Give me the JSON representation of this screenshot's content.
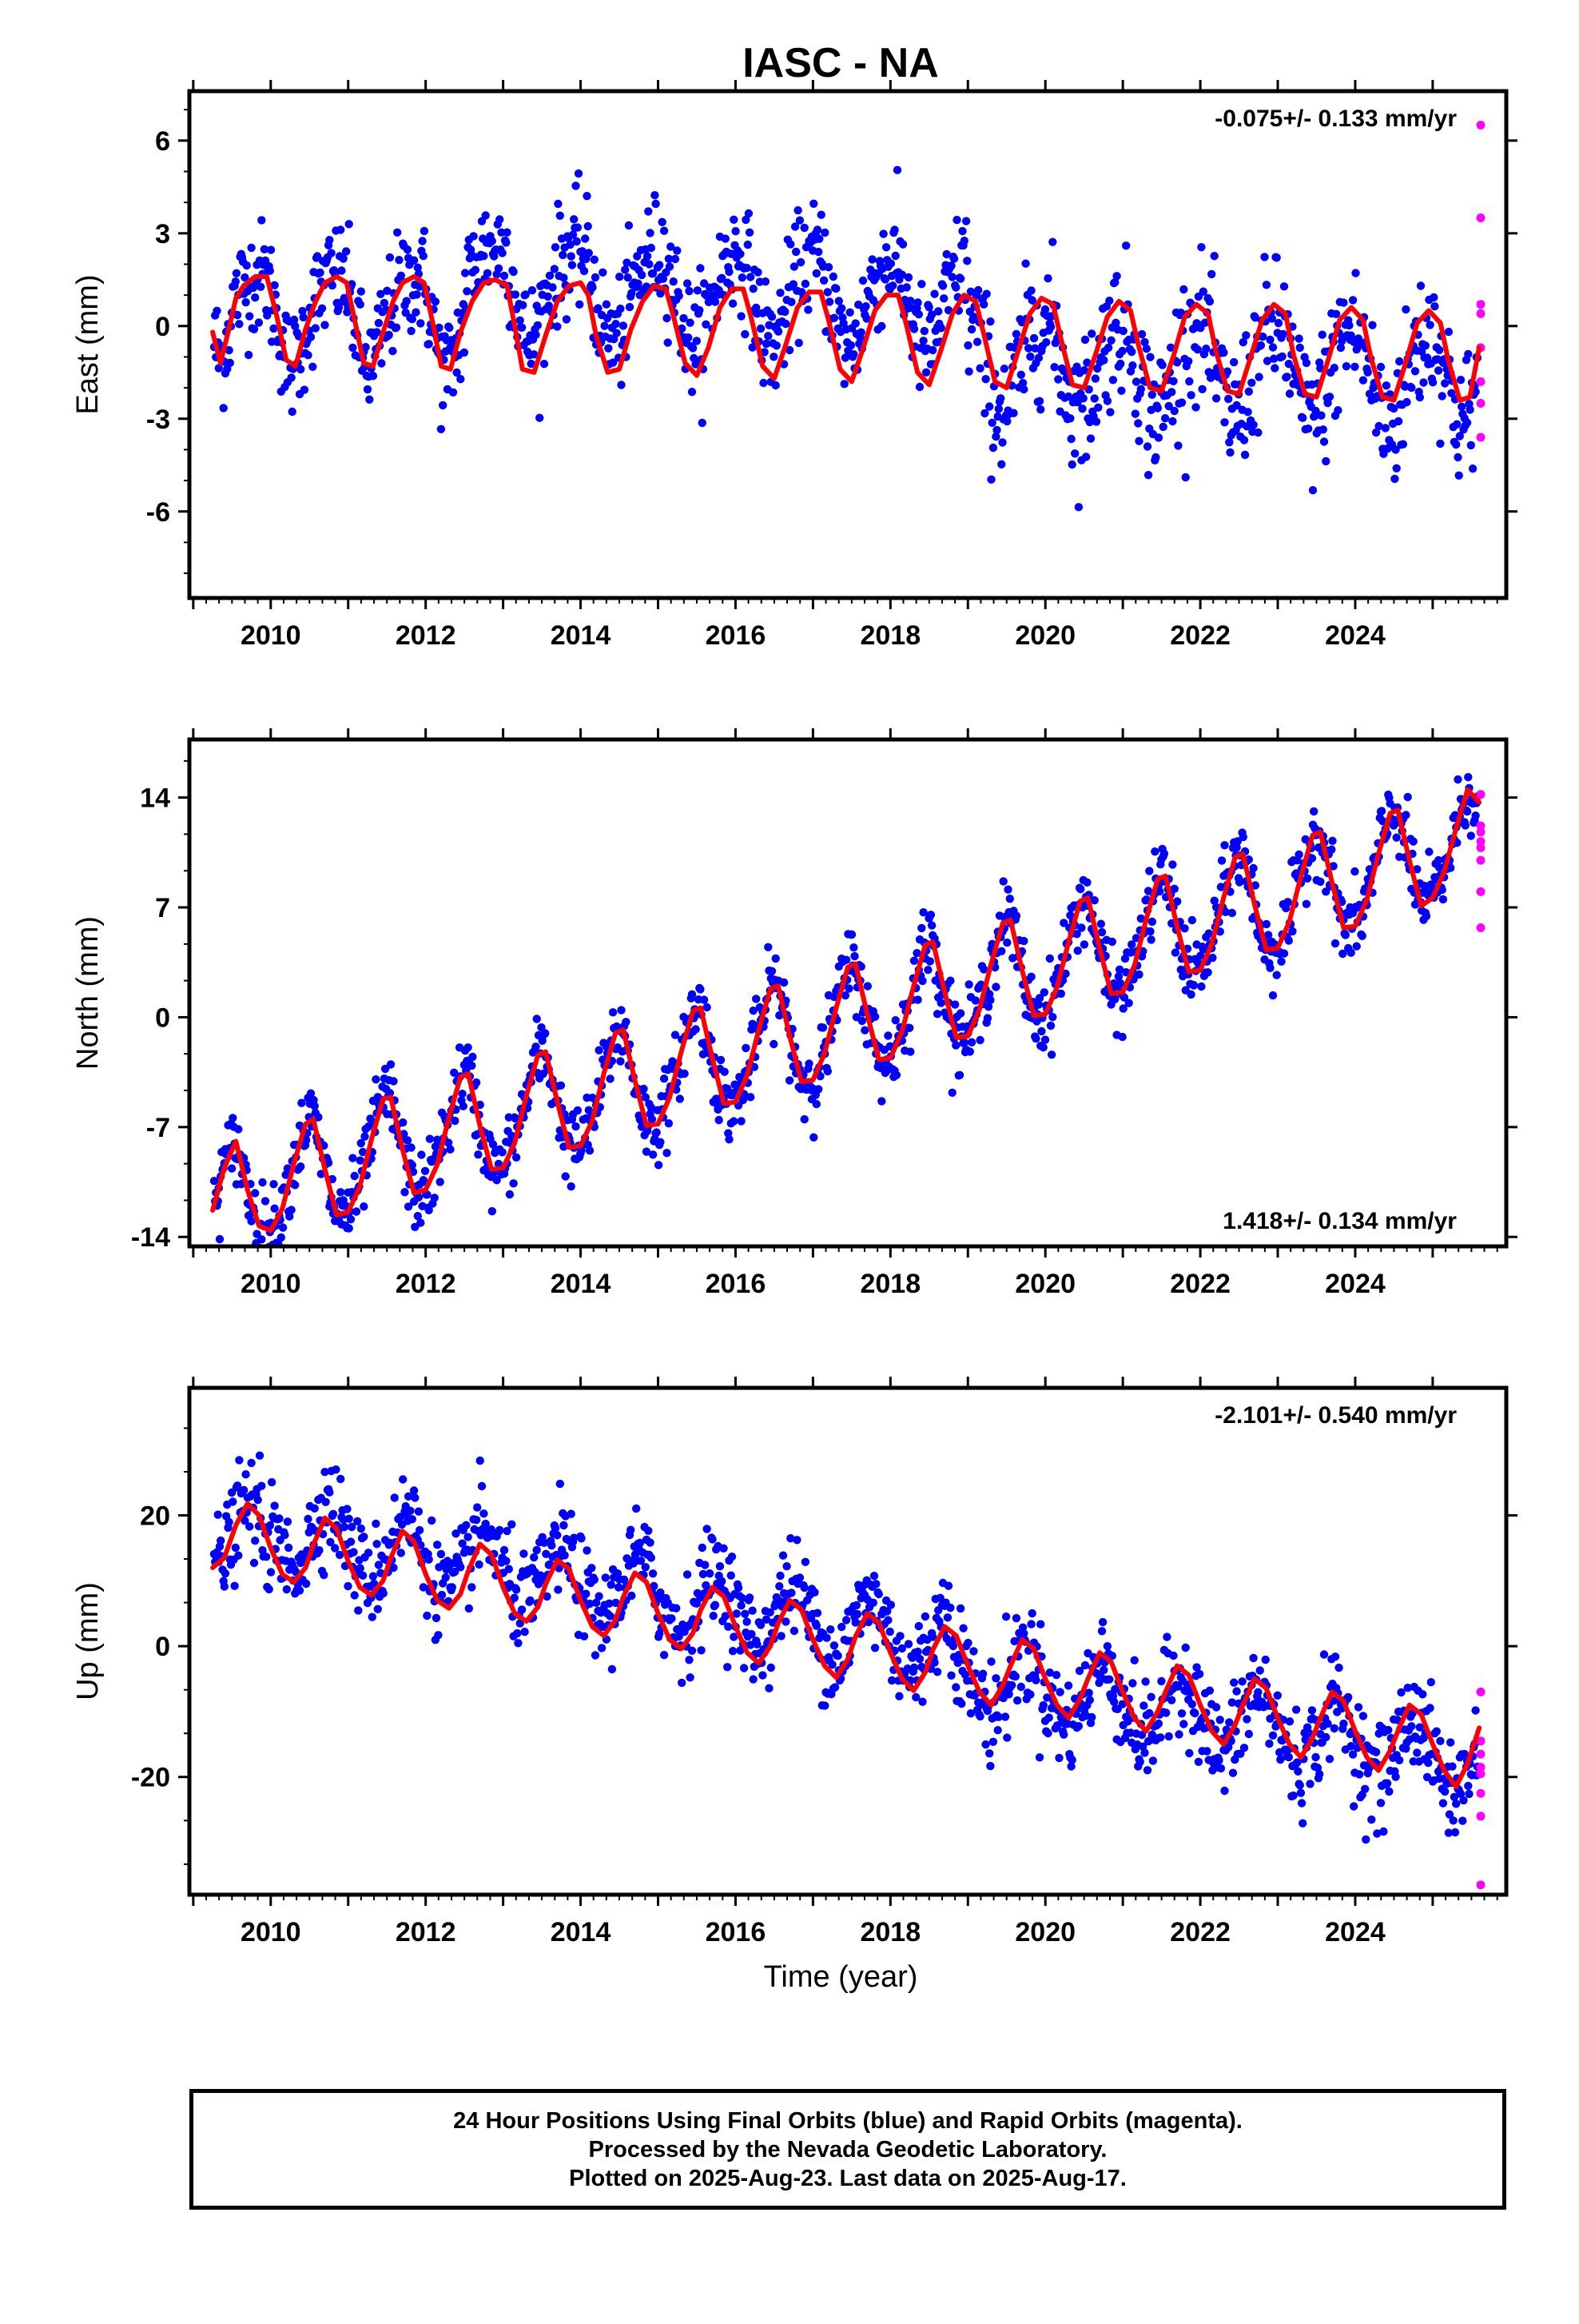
{
  "title": "IASC - NA",
  "x_label": "Time (year)",
  "footer": {
    "line1": "24 Hour Positions Using Final Orbits (blue) and Rapid Orbits (magenta).",
    "line2": "Processed by the Nevada Geodetic Laboratory.",
    "line3": "Plotted on 2025-Aug-23. Last data on 2025-Aug-17."
  },
  "colors": {
    "final_orbits": "#0000ff",
    "rapid_orbits": "#ff00ff",
    "model": "#ff0000",
    "axes": "#000000"
  },
  "chart_data": [
    {
      "type": "scatter",
      "ylabel": "East (mm)",
      "rate_text": "-0.075+/- 0.133 mm/yr",
      "rate_position": "top-right",
      "xlim": [
        2008.95,
        2025.95
      ],
      "ylim": [
        -8.8,
        7.6
      ],
      "yticks": [
        -6,
        -3,
        0,
        3,
        6
      ],
      "ytick_labels": [
        "-6",
        "-3",
        "0",
        "3",
        "6"
      ],
      "xticks": [
        2010,
        2012,
        2014,
        2016,
        2018,
        2020,
        2022,
        2024
      ],
      "xtick_labels": [
        "2010",
        "2012",
        "2014",
        "2016",
        "2018",
        "2020",
        "2022",
        "2024"
      ],
      "grid": false,
      "model": {
        "x": [
          2009.25,
          2009.35,
          2009.45,
          2009.55,
          2009.65,
          2009.8,
          2009.95,
          2010.08,
          2010.2,
          2010.32,
          2010.45,
          2010.58,
          2010.7,
          2010.85,
          2010.98,
          2011.1,
          2011.2,
          2011.32,
          2011.45,
          2011.58,
          2011.7,
          2011.85,
          2011.98,
          2012.1,
          2012.2,
          2012.32,
          2012.45,
          2012.6,
          2012.75,
          2012.9,
          2013.05,
          2013.15,
          2013.25,
          2013.4,
          2013.55,
          2013.7,
          2013.85,
          2014.0,
          2014.1,
          2014.2,
          2014.35,
          2014.5,
          2014.65,
          2014.8,
          2014.95,
          2015.1,
          2015.2,
          2015.35,
          2015.5,
          2015.65,
          2015.8,
          2015.95,
          2016.1,
          2016.2,
          2016.35,
          2016.5,
          2016.65,
          2016.8,
          2016.95,
          2017.1,
          2017.2,
          2017.35,
          2017.5,
          2017.65,
          2017.8,
          2017.95,
          2018.1,
          2018.2,
          2018.35,
          2018.5,
          2018.65,
          2018.8,
          2018.95,
          2019.1,
          2019.2,
          2019.35,
          2019.5,
          2019.65,
          2019.8,
          2019.95,
          2020.1,
          2020.2,
          2020.35,
          2020.5,
          2020.65,
          2020.8,
          2020.95,
          2021.1,
          2021.2,
          2021.35,
          2021.5,
          2021.65,
          2021.8,
          2021.95,
          2022.1,
          2022.2,
          2022.35,
          2022.5,
          2022.65,
          2022.8,
          2022.95,
          2023.1,
          2023.2,
          2023.35,
          2023.5,
          2023.65,
          2023.8,
          2023.95,
          2024.1,
          2024.2,
          2024.35,
          2024.5,
          2024.65,
          2024.8,
          2024.95,
          2025.1,
          2025.2,
          2025.35,
          2025.48,
          2025.6
        ],
        "y": [
          -0.2,
          -1.2,
          -0.2,
          0.9,
          1.3,
          1.6,
          1.6,
          0.3,
          -1.1,
          -1.3,
          -0.1,
          0.8,
          1.4,
          1.6,
          1.4,
          0.0,
          -1.2,
          -1.3,
          -0.2,
          0.8,
          1.4,
          1.6,
          1.4,
          0.0,
          -1.3,
          -1.4,
          -0.2,
          0.8,
          1.4,
          1.5,
          1.3,
          0.0,
          -1.4,
          -1.5,
          -0.3,
          0.8,
          1.3,
          1.4,
          1.0,
          -0.3,
          -1.5,
          -1.4,
          -0.1,
          0.8,
          1.3,
          1.2,
          0.3,
          -1.2,
          -1.6,
          -0.7,
          0.6,
          1.2,
          1.2,
          0.3,
          -1.3,
          -1.7,
          -0.6,
          0.6,
          1.1,
          1.1,
          0.2,
          -1.4,
          -1.8,
          -0.7,
          0.5,
          1.0,
          1.0,
          0.1,
          -1.5,
          -1.9,
          -0.8,
          0.4,
          1.0,
          0.8,
          -0.2,
          -1.8,
          -2.0,
          -0.8,
          0.4,
          0.9,
          0.7,
          -0.4,
          -1.9,
          -2.0,
          -0.9,
          0.3,
          0.8,
          0.5,
          -0.6,
          -2.0,
          -2.1,
          -1.0,
          0.3,
          0.7,
          0.4,
          -0.8,
          -2.1,
          -2.2,
          -1.0,
          0.2,
          0.7,
          0.4,
          -0.9,
          -2.2,
          -2.3,
          -1.1,
          0.2,
          0.6,
          0.2,
          -1.0,
          -2.3,
          -2.4,
          -1.2,
          0.1,
          0.5,
          0.1,
          -1.1,
          -2.4,
          -2.3,
          -0.7
        ]
      },
      "rapid": {
        "x": [
          2025.62,
          2025.62,
          2025.62,
          2025.62,
          2025.62,
          2025.62,
          2025.62,
          2025.62
        ],
        "y": [
          6.5,
          3.5,
          0.7,
          0.4,
          -0.7,
          -1.8,
          -2.5,
          -3.6
        ]
      }
    },
    {
      "type": "scatter",
      "ylabel": "North (mm)",
      "rate_text": "1.418+/- 0.134 mm/yr",
      "rate_position": "bottom-right",
      "xlim": [
        2008.95,
        2025.95
      ],
      "ylim": [
        -14.6,
        17.7
      ],
      "yticks": [
        -14,
        -7,
        0,
        7,
        14
      ],
      "ytick_labels": [
        "-14",
        "-7",
        "0",
        "7",
        "14"
      ],
      "xticks": [
        2010,
        2012,
        2014,
        2016,
        2018,
        2020,
        2022,
        2024
      ],
      "xtick_labels": [
        "2010",
        "2012",
        "2014",
        "2016",
        "2018",
        "2020",
        "2022",
        "2024"
      ],
      "grid": false,
      "model": {
        "x": [
          2009.25,
          2009.4,
          2009.55,
          2009.7,
          2009.85,
          2010.0,
          2010.15,
          2010.3,
          2010.45,
          2010.55,
          2010.7,
          2010.85,
          2011.0,
          2011.15,
          2011.3,
          2011.45,
          2011.55,
          2011.7,
          2011.85,
          2012.0,
          2012.15,
          2012.3,
          2012.45,
          2012.55,
          2012.7,
          2012.85,
          2013.0,
          2013.15,
          2013.3,
          2013.45,
          2013.55,
          2013.7,
          2013.85,
          2014.0,
          2014.15,
          2014.3,
          2014.45,
          2014.55,
          2014.7,
          2014.85,
          2015.0,
          2015.15,
          2015.3,
          2015.45,
          2015.55,
          2015.7,
          2015.85,
          2016.0,
          2016.15,
          2016.3,
          2016.45,
          2016.55,
          2016.7,
          2016.85,
          2017.0,
          2017.15,
          2017.3,
          2017.45,
          2017.55,
          2017.7,
          2017.85,
          2018.0,
          2018.15,
          2018.3,
          2018.45,
          2018.55,
          2018.7,
          2018.85,
          2019.0,
          2019.15,
          2019.3,
          2019.45,
          2019.55,
          2019.7,
          2019.85,
          2020.0,
          2020.15,
          2020.3,
          2020.45,
          2020.55,
          2020.7,
          2020.85,
          2021.0,
          2021.15,
          2021.3,
          2021.45,
          2021.55,
          2021.7,
          2021.85,
          2022.0,
          2022.15,
          2022.3,
          2022.45,
          2022.55,
          2022.7,
          2022.85,
          2023.0,
          2023.15,
          2023.3,
          2023.45,
          2023.55,
          2023.7,
          2023.85,
          2024.0,
          2024.15,
          2024.3,
          2024.45,
          2024.55,
          2024.7,
          2024.85,
          2025.0,
          2025.15,
          2025.3,
          2025.45,
          2025.6
        ],
        "y": [
          -12.3,
          -9.6,
          -7.9,
          -11.0,
          -13.3,
          -13.6,
          -12.2,
          -9.3,
          -6.8,
          -6.5,
          -9.7,
          -12.6,
          -12.4,
          -10.8,
          -7.8,
          -5.2,
          -5.1,
          -8.4,
          -11.2,
          -11.0,
          -9.4,
          -6.4,
          -3.8,
          -3.6,
          -6.9,
          -9.7,
          -9.6,
          -8.0,
          -5.0,
          -2.4,
          -2.2,
          -5.4,
          -8.3,
          -8.2,
          -6.6,
          -3.6,
          -1.0,
          -0.8,
          -4.0,
          -6.9,
          -6.8,
          -5.1,
          -2.2,
          0.4,
          0.6,
          -2.6,
          -5.5,
          -5.4,
          -3.7,
          -0.8,
          1.8,
          2.0,
          -1.2,
          -4.1,
          -4.0,
          -2.3,
          0.6,
          3.2,
          3.4,
          0.2,
          -2.7,
          -2.6,
          -0.9,
          2.0,
          4.6,
          4.8,
          1.6,
          -1.3,
          -1.2,
          0.5,
          3.4,
          6.0,
          6.2,
          3.0,
          0.1,
          0.2,
          1.9,
          4.8,
          7.4,
          7.6,
          4.4,
          1.5,
          1.6,
          3.3,
          6.2,
          8.8,
          9.0,
          5.8,
          2.9,
          3.0,
          4.7,
          7.6,
          10.2,
          10.4,
          7.2,
          4.3,
          4.4,
          6.1,
          9.0,
          11.6,
          11.8,
          8.6,
          5.7,
          5.8,
          7.5,
          10.4,
          13.0,
          13.2,
          10.0,
          7.1,
          7.6,
          9.3,
          12.0,
          14.5,
          13.7
        ]
      },
      "rapid": {
        "x": [
          2025.62,
          2025.62,
          2025.62,
          2025.62,
          2025.62,
          2025.62,
          2025.62,
          2025.62
        ],
        "y": [
          14.2,
          12.2,
          11.8,
          11.2,
          10.8,
          10.0,
          8.0,
          5.7
        ]
      }
    },
    {
      "type": "scatter",
      "ylabel": "Up (mm)",
      "rate_text": "-2.101+/- 0.540 mm/yr",
      "rate_position": "top-right",
      "xlim": [
        2008.95,
        2025.95
      ],
      "ylim": [
        -38.0,
        39.5
      ],
      "yticks": [
        -20,
        0,
        20
      ],
      "ytick_labels": [
        "-20",
        "0",
        "20"
      ],
      "xticks": [
        2010,
        2012,
        2014,
        2016,
        2018,
        2020,
        2022,
        2024
      ],
      "xtick_labels": [
        "2010",
        "2012",
        "2014",
        "2016",
        "2018",
        "2020",
        "2022",
        "2024"
      ],
      "grid": false,
      "model": {
        "x": [
          2009.25,
          2009.4,
          2009.55,
          2009.7,
          2009.85,
          2010.0,
          2010.15,
          2010.3,
          2010.45,
          2010.55,
          2010.7,
          2010.85,
          2011.0,
          2011.15,
          2011.3,
          2011.45,
          2011.55,
          2011.7,
          2011.85,
          2012.0,
          2012.15,
          2012.3,
          2012.45,
          2012.55,
          2012.7,
          2012.85,
          2013.0,
          2013.15,
          2013.3,
          2013.45,
          2013.55,
          2013.7,
          2013.85,
          2014.0,
          2014.15,
          2014.3,
          2014.45,
          2014.55,
          2014.7,
          2014.85,
          2015.0,
          2015.15,
          2015.3,
          2015.45,
          2015.55,
          2015.7,
          2015.85,
          2016.0,
          2016.15,
          2016.3,
          2016.45,
          2016.55,
          2016.7,
          2016.85,
          2017.0,
          2017.15,
          2017.3,
          2017.45,
          2017.55,
          2017.7,
          2017.85,
          2018.0,
          2018.15,
          2018.3,
          2018.45,
          2018.55,
          2018.7,
          2018.85,
          2019.0,
          2019.15,
          2019.3,
          2019.45,
          2019.55,
          2019.7,
          2019.85,
          2020.0,
          2020.15,
          2020.3,
          2020.45,
          2020.55,
          2020.7,
          2020.85,
          2021.0,
          2021.15,
          2021.3,
          2021.45,
          2021.55,
          2021.7,
          2021.85,
          2022.0,
          2022.15,
          2022.3,
          2022.45,
          2022.55,
          2022.7,
          2022.85,
          2023.0,
          2023.15,
          2023.3,
          2023.45,
          2023.55,
          2023.7,
          2023.85,
          2024.0,
          2024.15,
          2024.3,
          2024.45,
          2024.55,
          2024.7,
          2024.85,
          2025.0,
          2025.15,
          2025.3,
          2025.45,
          2025.6
        ],
        "y": [
          12.0,
          13.5,
          18.5,
          21.8,
          20.0,
          15.0,
          11.0,
          9.8,
          12.0,
          15.5,
          19.6,
          18.0,
          13.0,
          9.0,
          7.8,
          10.0,
          13.5,
          17.6,
          16.0,
          11.0,
          7.0,
          5.8,
          8.0,
          11.5,
          15.6,
          14.0,
          9.0,
          5.0,
          3.8,
          6.0,
          9.5,
          13.2,
          11.8,
          7.0,
          3.0,
          1.6,
          4.0,
          7.5,
          11.2,
          9.8,
          5.0,
          1.0,
          -0.4,
          2.0,
          5.5,
          9.0,
          7.6,
          3.0,
          -1.0,
          -2.6,
          0.0,
          3.5,
          7.0,
          5.6,
          1.0,
          -3.0,
          -4.8,
          -2.0,
          1.5,
          5.0,
          3.6,
          -1.0,
          -5.0,
          -6.8,
          -4.0,
          -0.5,
          3.0,
          1.6,
          -3.0,
          -7.0,
          -9.0,
          -6.0,
          -3.0,
          1.0,
          -0.4,
          -5.0,
          -9.0,
          -11.0,
          -8.0,
          -5.0,
          -1.0,
          -2.4,
          -7.0,
          -11.0,
          -13.0,
          -10.0,
          -7.0,
          -3.0,
          -4.4,
          -9.0,
          -13.0,
          -15.0,
          -12.0,
          -9.0,
          -5.0,
          -6.4,
          -11.0,
          -15.0,
          -17.0,
          -14.0,
          -11.0,
          -7.0,
          -8.4,
          -13.0,
          -17.0,
          -19.0,
          -16.0,
          -13.0,
          -9.0,
          -10.4,
          -15.0,
          -19.0,
          -21.5,
          -18.0,
          -12.5
        ]
      },
      "rapid": {
        "x": [
          2025.62,
          2025.62,
          2025.62,
          2025.62,
          2025.62,
          2025.62,
          2025.62,
          2025.62
        ],
        "y": [
          -7.0,
          -14.5,
          -16.5,
          -18.5,
          -19.5,
          -22.5,
          -26.0,
          -36.5
        ]
      }
    }
  ]
}
